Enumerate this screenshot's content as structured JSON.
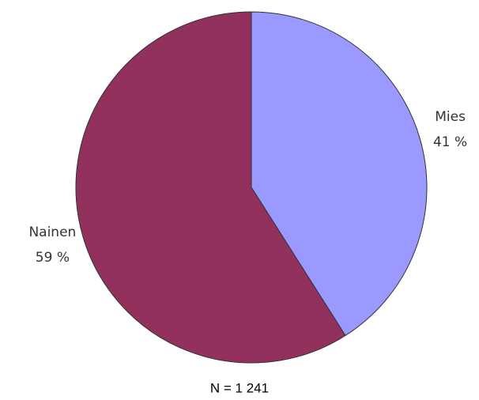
{
  "chart_data": {
    "type": "pie",
    "categories": [
      "Mies",
      "Nainen"
    ],
    "values": [
      41,
      59
    ],
    "value_labels": [
      "41 %",
      "59 %"
    ],
    "colors": [
      "#9999ff",
      "#93315e"
    ],
    "note": "N = 1 241"
  }
}
